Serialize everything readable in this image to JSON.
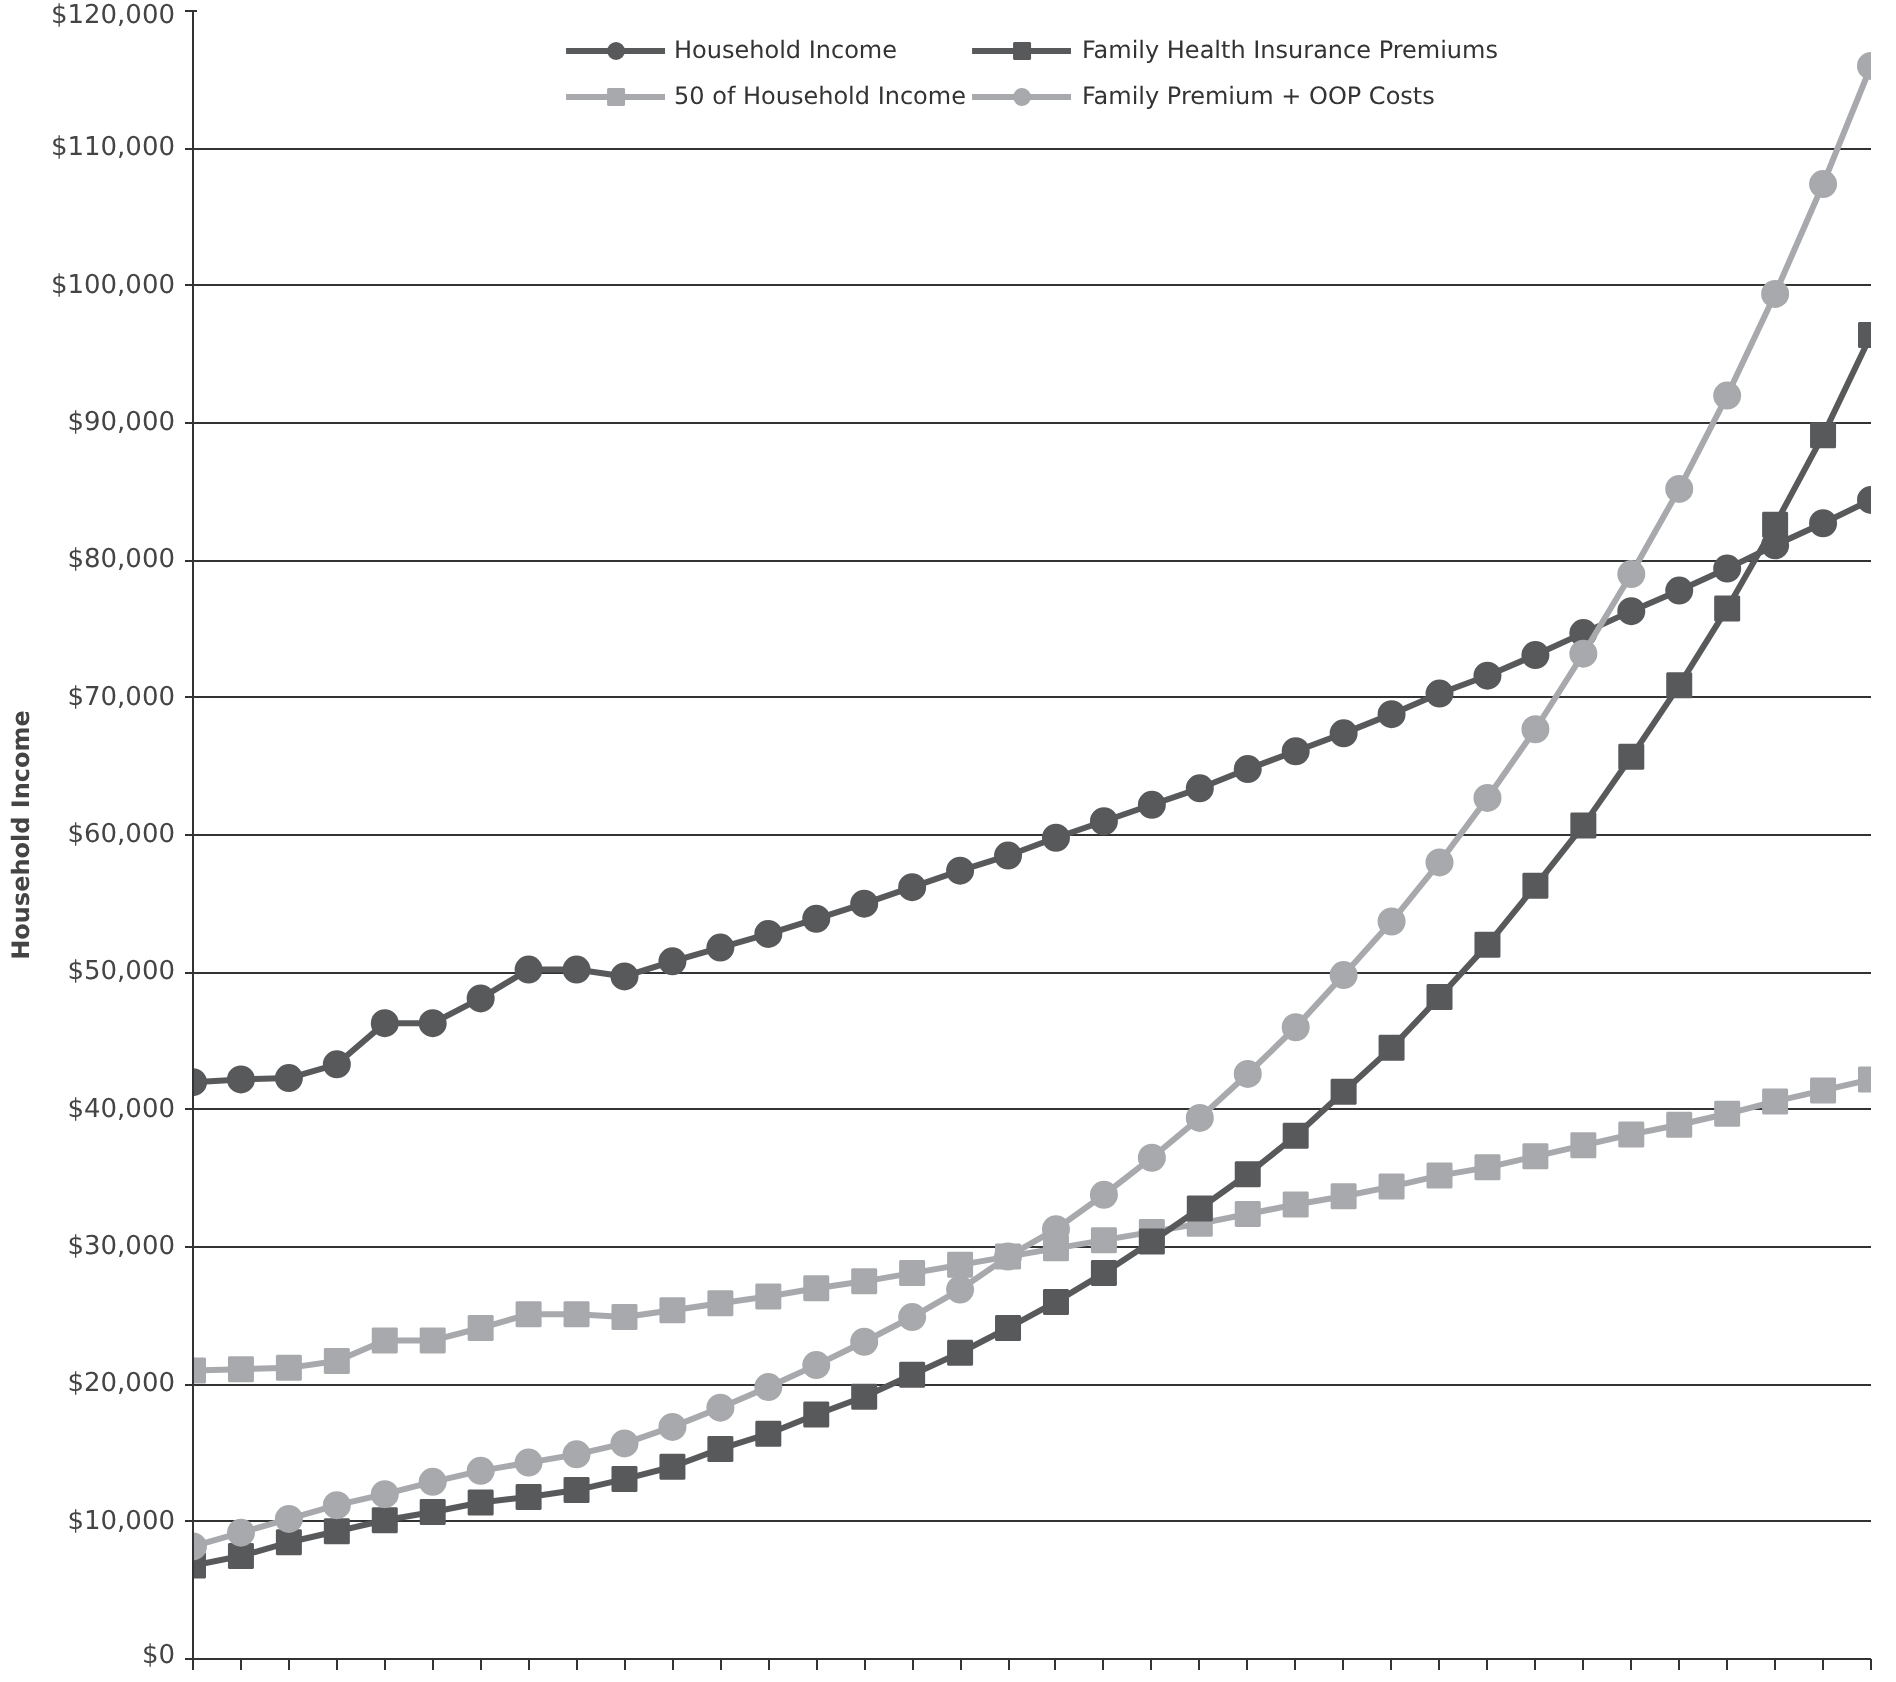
{
  "chart_data": {
    "type": "line",
    "ylabel": "Household Income",
    "categories": [
      null,
      null,
      null,
      null,
      null,
      null,
      null,
      null,
      null,
      null,
      null,
      null,
      null,
      null,
      null,
      null,
      null,
      null,
      null,
      null,
      null,
      null,
      null,
      null,
      null,
      null,
      null,
      null,
      null,
      null,
      null,
      null,
      null,
      null,
      null,
      null
    ],
    "ylim": [
      0,
      120000
    ],
    "yticks": [
      {
        "value": 0,
        "label": "$0"
      },
      {
        "value": 10000,
        "label": "$10,000"
      },
      {
        "value": 20000,
        "label": "$20,000"
      },
      {
        "value": 30000,
        "label": "$30,000"
      },
      {
        "value": 40000,
        "label": "$40,000"
      },
      {
        "value": 50000,
        "label": "$50,000"
      },
      {
        "value": 60000,
        "label": "$60,000"
      },
      {
        "value": 70000,
        "label": "$70,000"
      },
      {
        "value": 80000,
        "label": "$80,000"
      },
      {
        "value": 90000,
        "label": "$90,000"
      },
      {
        "value": 100000,
        "label": "$100,000"
      },
      {
        "value": 110000,
        "label": "$110,000"
      },
      {
        "value": 120000,
        "label": "$120,000"
      }
    ],
    "grid": "y",
    "legend": "top",
    "tick_labels": "y",
    "series": [
      {
        "name": "Household Income",
        "color": "#58595b",
        "marker": "circle",
        "values": [
          42000,
          42200,
          42300,
          43300,
          46300,
          46300,
          48100,
          50200,
          50200,
          49700,
          50800,
          51800,
          52800,
          53900,
          55000,
          56200,
          57400,
          58500,
          59800,
          61000,
          62200,
          63400,
          64800,
          66100,
          67400,
          68800,
          70300,
          71600,
          73100,
          74700,
          76300,
          77800,
          79400,
          81100,
          82700,
          84400
        ]
      },
      {
        "name": "50 of Household Income",
        "color": "#a7a9ac",
        "marker": "square",
        "values": [
          21000,
          21100,
          21200,
          21700,
          23200,
          23200,
          24100,
          25100,
          25100,
          24900,
          25400,
          25900,
          26400,
          27000,
          27500,
          28100,
          28700,
          29300,
          29900,
          30500,
          31100,
          31700,
          32400,
          33100,
          33700,
          34400,
          35200,
          35800,
          36600,
          37400,
          38200,
          38900,
          39700,
          40600,
          41400,
          42200
        ]
      },
      {
        "name": "Family Health Insurance Premiums",
        "color": "#58595b",
        "marker": "square",
        "values": [
          6800,
          7500,
          8500,
          9300,
          10100,
          10700,
          11400,
          11800,
          12300,
          13100,
          14000,
          15300,
          16400,
          17800,
          19100,
          20700,
          22300,
          24100,
          26000,
          28100,
          30400,
          32800,
          35300,
          38100,
          41300,
          44500,
          48200,
          52000,
          56300,
          60700,
          65700,
          70900,
          76500,
          82600,
          89100,
          96400
        ]
      },
      {
        "name": "Family Premium + OOP Costs",
        "color": "#a7a9ac",
        "marker": "circle",
        "values": [
          8200,
          9200,
          10200,
          11200,
          12000,
          12900,
          13700,
          14300,
          14900,
          15700,
          16900,
          18300,
          19800,
          21400,
          23100,
          24900,
          26900,
          29300,
          31300,
          33800,
          36500,
          39400,
          42600,
          46000,
          49800,
          53700,
          58000,
          62700,
          67700,
          73200,
          79000,
          85200,
          92000,
          99400,
          107400,
          116000
        ]
      }
    ]
  }
}
